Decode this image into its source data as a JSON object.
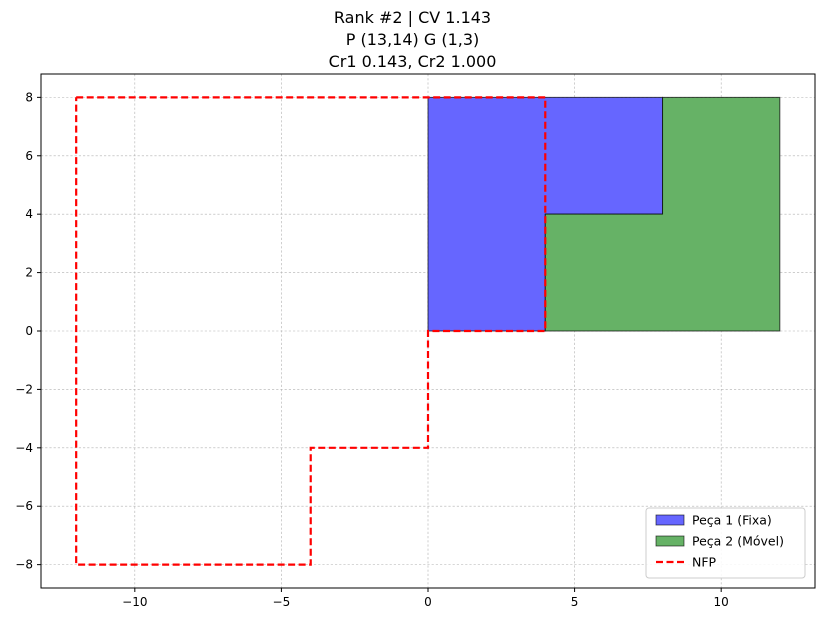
{
  "chart_data": {
    "type": "area",
    "title_lines": [
      "Rank #2 | CV 1.143",
      "P (13,14) G (1,3)",
      "Cr1 0.143, Cr2 1.000"
    ],
    "xlim": [
      -13.2,
      13.2
    ],
    "ylim": [
      -8.8,
      8.8
    ],
    "xticks": [
      -10,
      -5,
      0,
      5,
      10
    ],
    "yticks": [
      -8,
      -6,
      -4,
      -2,
      0,
      2,
      4,
      6,
      8
    ],
    "xtick_labels": [
      "−10",
      "−5",
      "0",
      "5",
      "10"
    ],
    "ytick_labels": [
      "−8",
      "−6",
      "−4",
      "−2",
      "0",
      "2",
      "4",
      "6",
      "8"
    ],
    "grid": true,
    "legend_position": "lower-right",
    "series": [
      {
        "name": "Peça 1 (Fixa)",
        "kind": "polygon",
        "color": "#6666ff",
        "edge": "#000000",
        "points": [
          [
            0,
            0
          ],
          [
            4,
            0
          ],
          [
            4,
            4
          ],
          [
            8,
            4
          ],
          [
            8,
            8
          ],
          [
            0,
            8
          ]
        ]
      },
      {
        "name": "Peça 2 (Móvel)",
        "kind": "polygon",
        "color": "#66b266",
        "edge": "#000000",
        "points": [
          [
            4,
            0
          ],
          [
            12,
            0
          ],
          [
            12,
            8
          ],
          [
            8,
            8
          ],
          [
            8,
            4
          ],
          [
            4,
            4
          ]
        ]
      },
      {
        "name": "NFP",
        "kind": "dashed-line",
        "color": "#ff0000",
        "points": [
          [
            -12,
            8
          ],
          [
            4,
            8
          ],
          [
            4,
            0
          ],
          [
            0,
            0
          ],
          [
            0,
            -4
          ],
          [
            -4,
            -4
          ],
          [
            -4,
            -8
          ],
          [
            -12,
            -8
          ],
          [
            -12,
            8
          ]
        ]
      }
    ]
  }
}
